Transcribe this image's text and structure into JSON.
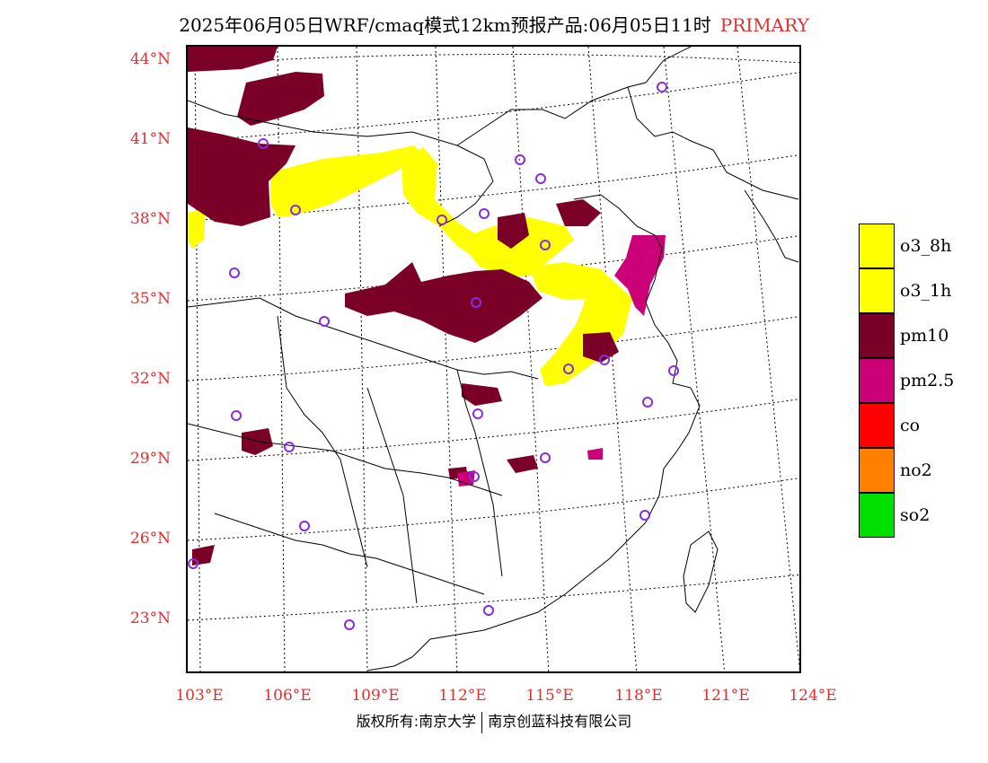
{
  "title": {
    "main": "2025年06月05日WRF/cmaq模式12km预报产品:06月05日11时",
    "tag": "PRIMARY"
  },
  "map": {
    "lat_labels": [
      "44°N",
      "41°N",
      "38°N",
      "35°N",
      "32°N",
      "29°N",
      "26°N",
      "23°N"
    ],
    "lon_labels": [
      "103°E",
      "106°E",
      "109°E",
      "112°E",
      "115°E",
      "118°E",
      "121°E",
      "124°E"
    ],
    "colors": {
      "pm10": "#7b0028",
      "pm25": "#cc0077",
      "o3": "#ffff00",
      "station": "#8a2be2",
      "boundary": "#000000"
    }
  },
  "legend": {
    "items": [
      {
        "label": "o3_8h",
        "color": "#ffff00"
      },
      {
        "label": "o3_1h",
        "color": "#ffff00"
      },
      {
        "label": "pm10",
        "color": "#7b0028"
      },
      {
        "label": "pm2.5",
        "color": "#cc0077"
      },
      {
        "label": "co",
        "color": "#ff0000"
      },
      {
        "label": "no2",
        "color": "#ff8000"
      },
      {
        "label": "so2",
        "color": "#00e000"
      }
    ]
  },
  "footer": {
    "left": "版权所有:南京大学",
    "right": "南京创蓝科技有限公司"
  }
}
